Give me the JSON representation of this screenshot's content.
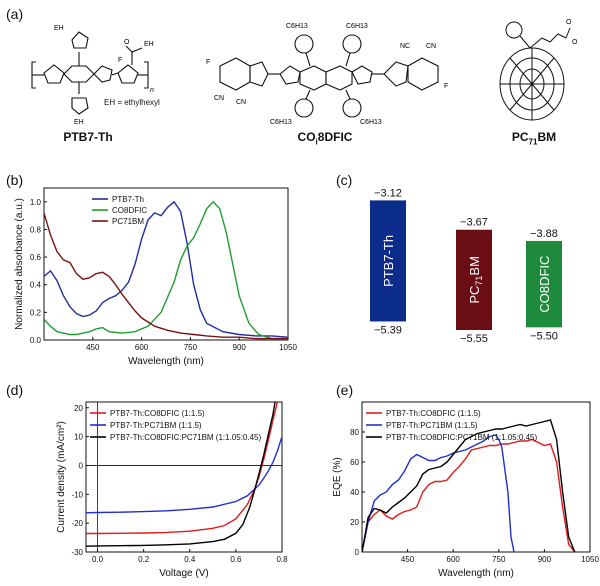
{
  "panels": {
    "a": "(a)",
    "b": "(b)",
    "c": "(c)",
    "d": "(d)",
    "e": "(e)"
  },
  "structures": {
    "ptb7": {
      "name": "PTB7-Th",
      "note": "EH = ethylhexyl",
      "subs": [
        "EH",
        "EH",
        "O",
        "EH",
        "F",
        "n"
      ]
    },
    "co8dfic": {
      "name": "CO",
      "name_sub": "i",
      "name_rest": "8DFIC",
      "subs": [
        "C6H13",
        "C6H13",
        "C6H13",
        "C6H13",
        "F",
        "F",
        "CN",
        "CN",
        "NC",
        "CN"
      ]
    },
    "pcbm": {
      "name": "PC",
      "name_sub": "71",
      "name_rest": "BM",
      "subs": [
        "O",
        "O"
      ]
    }
  },
  "chart_data": [
    {
      "id": "b",
      "type": "line",
      "title": "",
      "xlabel": "Wavelength (nm)",
      "ylabel": "Normalized absorbance (a.u.)",
      "xlim": [
        300,
        1050
      ],
      "ylim": [
        0,
        1.1
      ],
      "xticks": [
        450,
        600,
        750,
        900,
        1050
      ],
      "yticks": [
        0.0,
        0.2,
        0.4,
        0.6,
        0.8,
        1.0
      ],
      "yticklabels": [
        "0.0",
        "0.2",
        "0.4",
        "0.6",
        "0.8",
        "1.0"
      ],
      "legend_position": "top-left",
      "series": [
        {
          "name": "PTB7-Th",
          "color": "#1f2f9e",
          "x": [
            300,
            320,
            340,
            360,
            380,
            400,
            420,
            440,
            460,
            480,
            500,
            520,
            540,
            560,
            580,
            600,
            620,
            640,
            660,
            680,
            700,
            720,
            740,
            760,
            780,
            800,
            850,
            900,
            950,
            1000,
            1050
          ],
          "y": [
            0.46,
            0.5,
            0.43,
            0.32,
            0.24,
            0.19,
            0.17,
            0.18,
            0.21,
            0.27,
            0.3,
            0.32,
            0.36,
            0.42,
            0.55,
            0.73,
            0.87,
            0.92,
            0.9,
            0.96,
            1.0,
            0.93,
            0.7,
            0.4,
            0.22,
            0.12,
            0.06,
            0.04,
            0.03,
            0.03,
            0.02
          ]
        },
        {
          "name": "CO8DFIC",
          "color": "#1f9e2f",
          "x": [
            300,
            320,
            340,
            360,
            380,
            400,
            420,
            440,
            460,
            480,
            500,
            540,
            580,
            620,
            660,
            700,
            720,
            740,
            760,
            780,
            800,
            820,
            840,
            860,
            880,
            900,
            930,
            960,
            1000,
            1050
          ],
          "y": [
            0.15,
            0.1,
            0.06,
            0.05,
            0.04,
            0.04,
            0.05,
            0.06,
            0.08,
            0.09,
            0.06,
            0.05,
            0.06,
            0.1,
            0.2,
            0.42,
            0.58,
            0.68,
            0.74,
            0.84,
            0.95,
            1.0,
            0.95,
            0.78,
            0.55,
            0.32,
            0.12,
            0.04,
            0.01,
            0.01
          ]
        },
        {
          "name": "PC71BM",
          "color": "#7a1414",
          "x": [
            300,
            320,
            340,
            360,
            380,
            400,
            420,
            440,
            460,
            480,
            500,
            520,
            540,
            560,
            580,
            600,
            640,
            680,
            720,
            760,
            800,
            850,
            900,
            950,
            1000,
            1050
          ],
          "y": [
            0.92,
            0.76,
            0.64,
            0.58,
            0.56,
            0.48,
            0.44,
            0.45,
            0.48,
            0.49,
            0.46,
            0.4,
            0.33,
            0.27,
            0.21,
            0.16,
            0.1,
            0.07,
            0.05,
            0.04,
            0.03,
            0.02,
            0.02,
            0.01,
            0.01,
            0.01
          ]
        }
      ]
    },
    {
      "id": "c",
      "type": "bar",
      "title": "",
      "categories": [
        "PTB7-Th",
        "PC71BM",
        "CO8DFIC"
      ],
      "category_main": [
        "PTB7-Th",
        "PC",
        "CO8DFIC"
      ],
      "category_sub": [
        "",
        "71",
        ""
      ],
      "category_tail": [
        "",
        "BM",
        ""
      ],
      "lumo": [
        -3.12,
        -3.67,
        -3.88
      ],
      "homo": [
        -5.39,
        -5.55,
        -5.5
      ],
      "lumo_labels": [
        "−3.12",
        "−3.67",
        "−3.88"
      ],
      "homo_labels": [
        "−5.39",
        "−5.55",
        "−5.50"
      ],
      "colors": [
        "#0b2c8a",
        "#6b0e14",
        "#1d8a3c"
      ],
      "ylim": [
        -5.7,
        -3.0
      ]
    },
    {
      "id": "d",
      "type": "line",
      "title": "",
      "xlabel": "Voltage (V)",
      "ylabel": "Current density (mA/cm²)",
      "xlim": [
        -0.05,
        0.8
      ],
      "ylim": [
        -30,
        22
      ],
      "xticks": [
        0.0,
        0.2,
        0.4,
        0.6,
        0.8
      ],
      "xticklabels": [
        "0.0",
        "0.2",
        "0.4",
        "0.6",
        "0.8"
      ],
      "yticks": [
        -30,
        -20,
        -10,
        0,
        10,
        20
      ],
      "yticklabels": [
        "-30",
        "-20",
        "-10",
        "0",
        "10",
        "20"
      ],
      "legend_position": "top-left",
      "series": [
        {
          "name": "PTB7-Th:CO8DFIC (1:1.5)",
          "color": "#e01b1b",
          "x": [
            -0.05,
            0.0,
            0.1,
            0.2,
            0.3,
            0.4,
            0.5,
            0.55,
            0.6,
            0.65,
            0.68,
            0.7,
            0.72,
            0.74,
            0.76,
            0.78
          ],
          "y": [
            -23.6,
            -23.6,
            -23.5,
            -23.4,
            -23.2,
            -22.8,
            -21.8,
            -20.8,
            -18.5,
            -13.5,
            -8.5,
            -4.0,
            2.0,
            8.5,
            15.5,
            22.0
          ]
        },
        {
          "name": "PTB7-Th:PC71BM (1:1.5)",
          "color": "#1f2fd0",
          "x": [
            -0.05,
            0.0,
            0.1,
            0.2,
            0.3,
            0.4,
            0.5,
            0.6,
            0.65,
            0.7,
            0.72,
            0.74,
            0.76,
            0.78,
            0.8
          ],
          "y": [
            -16.4,
            -16.3,
            -16.2,
            -16.0,
            -15.7,
            -15.2,
            -14.4,
            -12.5,
            -10.5,
            -6.8,
            -4.5,
            -2.0,
            1.0,
            5.0,
            10.0
          ]
        },
        {
          "name": "PTB7-Th:CO8DFIC:PC71BM (1:1.05:0.45)",
          "color": "#000000",
          "x": [
            -0.05,
            0.0,
            0.1,
            0.2,
            0.3,
            0.4,
            0.5,
            0.55,
            0.6,
            0.63,
            0.66,
            0.68,
            0.7,
            0.72,
            0.74,
            0.76,
            0.77
          ],
          "y": [
            -28.0,
            -27.9,
            -27.8,
            -27.7,
            -27.5,
            -27.2,
            -26.4,
            -25.6,
            -23.5,
            -20.5,
            -14.5,
            -9.0,
            -3.0,
            3.5,
            10.5,
            17.5,
            22.0
          ]
        }
      ]
    },
    {
      "id": "e",
      "type": "line",
      "title": "",
      "xlabel": "Wavelength (nm)",
      "ylabel": "EQE (%)",
      "xlim": [
        300,
        1050
      ],
      "ylim": [
        0,
        100
      ],
      "xticks": [
        450,
        600,
        750,
        900,
        1050
      ],
      "yticks": [
        0,
        20,
        40,
        60,
        80
      ],
      "yticklabels": [
        "0",
        "20",
        "40",
        "60",
        "80"
      ],
      "legend_position": "top-left",
      "series": [
        {
          "name": "PTB7-Th:CO8DFIC (1:1.5)",
          "color": "#e01b1b",
          "x": [
            300,
            320,
            340,
            360,
            380,
            400,
            420,
            440,
            460,
            480,
            500,
            520,
            540,
            560,
            580,
            600,
            620,
            640,
            660,
            680,
            700,
            720,
            740,
            760,
            780,
            800,
            820,
            840,
            860,
            880,
            900,
            920,
            940,
            960,
            980,
            1000
          ],
          "y": [
            0,
            20,
            25,
            28,
            24,
            22,
            25,
            27,
            28,
            30,
            40,
            45,
            47,
            47,
            48,
            53,
            57,
            62,
            68,
            69,
            70,
            71,
            71,
            72,
            72,
            73,
            74,
            74,
            75,
            73,
            71,
            72,
            60,
            30,
            5,
            0
          ]
        },
        {
          "name": "PTB7-Th:PC71BM (1:1.5)",
          "color": "#1f2fd0",
          "x": [
            300,
            320,
            340,
            360,
            380,
            400,
            420,
            440,
            460,
            480,
            500,
            520,
            540,
            560,
            580,
            600,
            620,
            640,
            660,
            680,
            700,
            720,
            740,
            750,
            760,
            780,
            790,
            800
          ],
          "y": [
            0,
            20,
            34,
            38,
            40,
            45,
            48,
            54,
            62,
            65,
            63,
            61,
            61,
            63,
            64,
            66,
            67,
            68,
            70,
            72,
            74,
            77,
            78,
            75,
            70,
            40,
            10,
            0
          ]
        },
        {
          "name": "PTB7-Th:CO8DFIC:PC71BM (1:1.05:0.45)",
          "color": "#000000",
          "x": [
            300,
            320,
            340,
            360,
            380,
            400,
            420,
            440,
            460,
            480,
            500,
            520,
            540,
            560,
            580,
            600,
            620,
            640,
            660,
            680,
            700,
            720,
            740,
            760,
            780,
            800,
            820,
            840,
            860,
            880,
            900,
            920,
            940,
            960,
            980,
            1000
          ],
          "y": [
            0,
            23,
            29,
            28,
            26,
            30,
            33,
            36,
            40,
            44,
            52,
            55,
            56,
            57,
            60,
            65,
            70,
            75,
            77,
            79,
            80,
            81,
            82,
            82,
            83,
            84,
            85,
            84,
            85,
            86,
            87,
            88,
            75,
            40,
            10,
            0
          ]
        }
      ]
    }
  ]
}
